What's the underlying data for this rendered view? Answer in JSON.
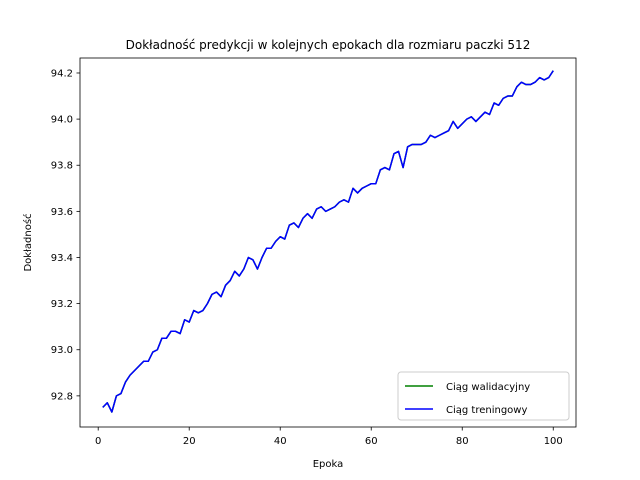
{
  "chart_data": {
    "type": "line",
    "title": "Dokładność predykcji w kolejnych epokach dla rozmiaru paczki 512",
    "xlabel": "Epoka",
    "ylabel": "Dokładność",
    "xlim": [
      -4,
      105
    ],
    "ylim": [
      92.665,
      94.265
    ],
    "xticks": [
      0,
      20,
      40,
      60,
      80,
      100
    ],
    "yticks": [
      92.8,
      93.0,
      93.2,
      93.4,
      93.6,
      93.8,
      94.0,
      94.2
    ],
    "xtick_labels": [
      "0",
      "20",
      "40",
      "60",
      "80",
      "100"
    ],
    "ytick_labels": [
      "92.8",
      "93.0",
      "93.2",
      "93.4",
      "93.6",
      "93.8",
      "94.0",
      "94.2"
    ],
    "grid": false,
    "legend_position": "lower-right",
    "series": [
      {
        "name": "Ciąg walidacyjny",
        "color": "#008000",
        "x": [
          1,
          2,
          3,
          4,
          5,
          6,
          7,
          8,
          9,
          10,
          11,
          12,
          13,
          14,
          15,
          16,
          17,
          18,
          19,
          20,
          21,
          22,
          23,
          24,
          25,
          26,
          27,
          28,
          29,
          30,
          31,
          32,
          33,
          34,
          35,
          36,
          37,
          38,
          39,
          40,
          41,
          42,
          43,
          44,
          45,
          46,
          47,
          48,
          49,
          50,
          51,
          52,
          53,
          54,
          55,
          56,
          57,
          58,
          59,
          60,
          61,
          62,
          63,
          64,
          65,
          66,
          67,
          68,
          69,
          70,
          71,
          72,
          73,
          74,
          75,
          76,
          77,
          78,
          79,
          80,
          81,
          82,
          83,
          84,
          85,
          86,
          87,
          88,
          89,
          90,
          91,
          92,
          93,
          94,
          95,
          96,
          97,
          98,
          99,
          100
        ],
        "y": [
          92.75,
          92.77,
          92.73,
          92.8,
          92.81,
          92.86,
          92.89,
          92.91,
          92.93,
          92.95,
          92.95,
          92.99,
          93.0,
          93.05,
          93.05,
          93.08,
          93.08,
          93.07,
          93.13,
          93.12,
          93.17,
          93.16,
          93.17,
          93.2,
          93.24,
          93.25,
          93.23,
          93.28,
          93.3,
          93.34,
          93.32,
          93.35,
          93.4,
          93.39,
          93.35,
          93.4,
          93.44,
          93.44,
          93.47,
          93.49,
          93.48,
          93.54,
          93.55,
          93.53,
          93.57,
          93.59,
          93.57,
          93.61,
          93.62,
          93.6,
          93.61,
          93.62,
          93.64,
          93.65,
          93.64,
          93.7,
          93.68,
          93.7,
          93.71,
          93.72,
          93.72,
          93.78,
          93.79,
          93.78,
          93.85,
          93.86,
          93.79,
          93.88,
          93.89,
          93.89,
          93.89,
          93.9,
          93.93,
          93.92,
          93.93,
          93.94,
          93.95,
          93.99,
          93.96,
          93.98,
          94.0,
          94.01,
          93.99,
          94.01,
          94.03,
          94.02,
          94.07,
          94.06,
          94.09,
          94.1,
          94.1,
          94.14,
          94.16,
          94.15,
          94.15,
          94.16,
          94.18,
          94.17,
          94.18,
          94.21
        ]
      },
      {
        "name": "Ciąg treningowy",
        "color": "#0000ff",
        "x": [
          1,
          2,
          3,
          4,
          5,
          6,
          7,
          8,
          9,
          10,
          11,
          12,
          13,
          14,
          15,
          16,
          17,
          18,
          19,
          20,
          21,
          22,
          23,
          24,
          25,
          26,
          27,
          28,
          29,
          30,
          31,
          32,
          33,
          34,
          35,
          36,
          37,
          38,
          39,
          40,
          41,
          42,
          43,
          44,
          45,
          46,
          47,
          48,
          49,
          50,
          51,
          52,
          53,
          54,
          55,
          56,
          57,
          58,
          59,
          60,
          61,
          62,
          63,
          64,
          65,
          66,
          67,
          68,
          69,
          70,
          71,
          72,
          73,
          74,
          75,
          76,
          77,
          78,
          79,
          80,
          81,
          82,
          83,
          84,
          85,
          86,
          87,
          88,
          89,
          90,
          91,
          92,
          93,
          94,
          95,
          96,
          97,
          98,
          99,
          100
        ],
        "y": [
          92.75,
          92.77,
          92.73,
          92.8,
          92.81,
          92.86,
          92.89,
          92.91,
          92.93,
          92.95,
          92.95,
          92.99,
          93.0,
          93.05,
          93.05,
          93.08,
          93.08,
          93.07,
          93.13,
          93.12,
          93.17,
          93.16,
          93.17,
          93.2,
          93.24,
          93.25,
          93.23,
          93.28,
          93.3,
          93.34,
          93.32,
          93.35,
          93.4,
          93.39,
          93.35,
          93.4,
          93.44,
          93.44,
          93.47,
          93.49,
          93.48,
          93.54,
          93.55,
          93.53,
          93.57,
          93.59,
          93.57,
          93.61,
          93.62,
          93.6,
          93.61,
          93.62,
          93.64,
          93.65,
          93.64,
          93.7,
          93.68,
          93.7,
          93.71,
          93.72,
          93.72,
          93.78,
          93.79,
          93.78,
          93.85,
          93.86,
          93.79,
          93.88,
          93.89,
          93.89,
          93.89,
          93.9,
          93.93,
          93.92,
          93.93,
          93.94,
          93.95,
          93.99,
          93.96,
          93.98,
          94.0,
          94.01,
          93.99,
          94.01,
          94.03,
          94.02,
          94.07,
          94.06,
          94.09,
          94.1,
          94.1,
          94.14,
          94.16,
          94.15,
          94.15,
          94.16,
          94.18,
          94.17,
          94.18,
          94.21
        ]
      }
    ]
  }
}
